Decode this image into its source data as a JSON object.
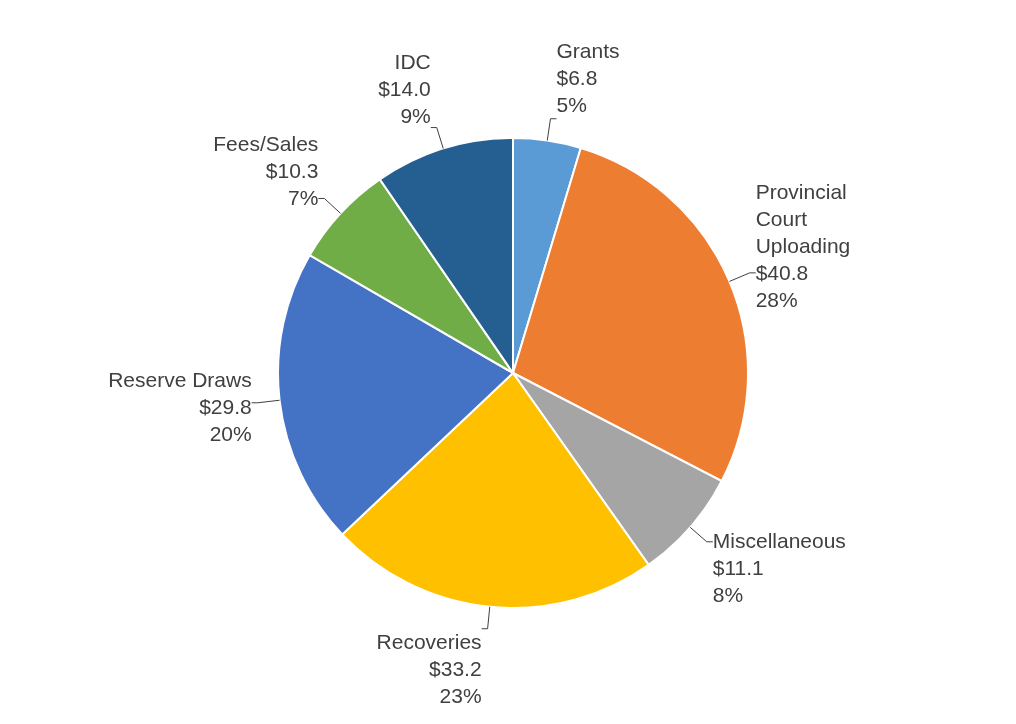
{
  "chart_data": {
    "type": "pie",
    "categories": [
      "Grants",
      "Provincial Court Uploading",
      "Miscellaneous",
      "Recoveries",
      "Reserve Draws",
      "Fees/Sales",
      "IDC"
    ],
    "values": [
      6.8,
      40.8,
      11.1,
      33.2,
      29.8,
      10.3,
      14.0
    ],
    "colors": [
      "#5b9bd5",
      "#ed7d31",
      "#a5a5a5",
      "#ffc000",
      "#4472c4",
      "#70ad47",
      "#255e91"
    ],
    "value_labels": [
      "$6.8\n5%",
      "$40.8\n28%",
      "$11.1\n8%",
      "$33.2\n23%",
      "$29.8\n20%",
      "$10.3\n7%",
      "$14.0\n9%"
    ],
    "legend": false
  }
}
